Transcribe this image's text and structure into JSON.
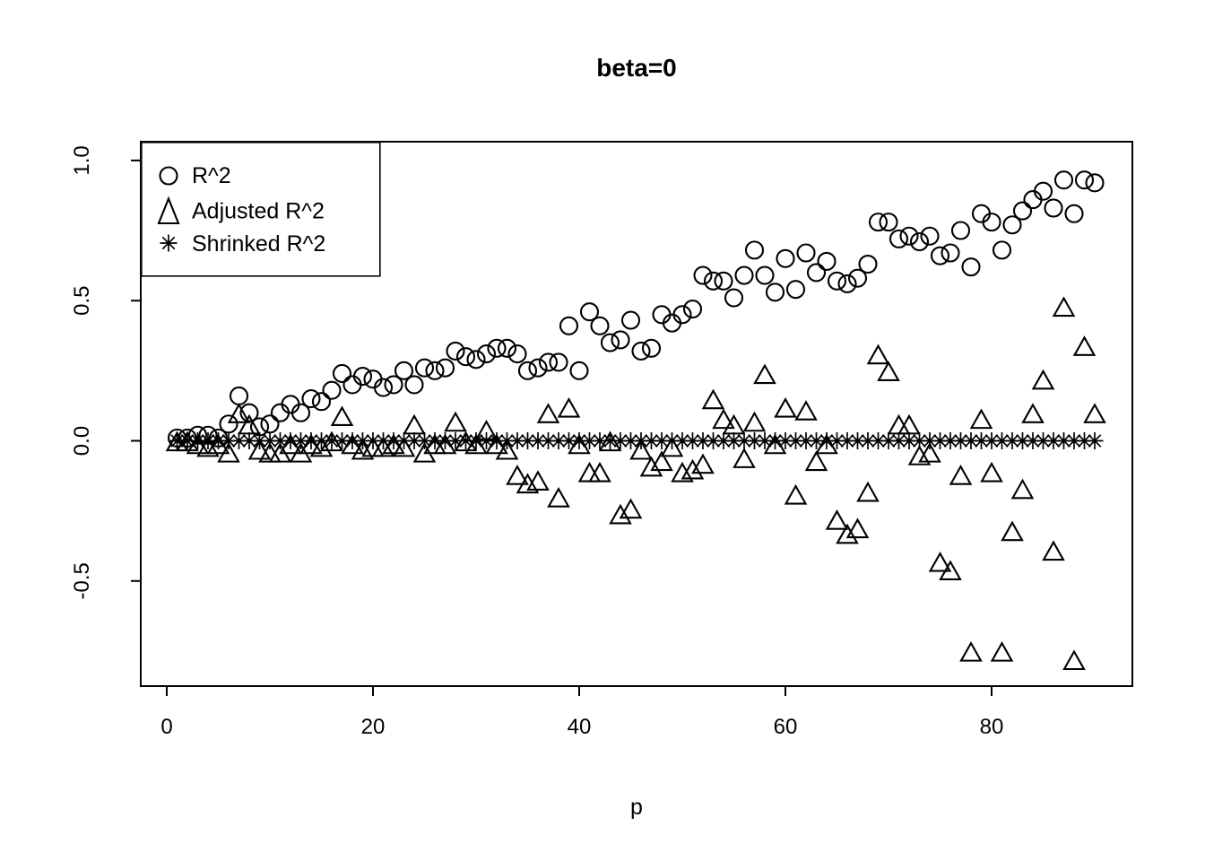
{
  "title": "beta=0",
  "chart_data": {
    "type": "scatter",
    "title": "beta=0",
    "xlabel": "p",
    "ylabel": "",
    "grid": false,
    "legend_position": "top-left",
    "xlim": [
      -2.5,
      93.6
    ],
    "ylim": [
      -0.875,
      1.067
    ],
    "x_ticks": [
      0,
      20,
      40,
      60,
      80
    ],
    "y_ticks": [
      -0.5,
      0.0,
      0.5,
      1.0
    ],
    "x_tick_labels": [
      "0",
      "20",
      "40",
      "60",
      "80"
    ],
    "y_tick_labels": [
      "-0.5",
      "0.0",
      "0.5",
      "1.0"
    ],
    "x": [
      1,
      2,
      3,
      4,
      5,
      6,
      7,
      8,
      9,
      10,
      11,
      12,
      13,
      14,
      15,
      16,
      17,
      18,
      19,
      20,
      21,
      22,
      23,
      24,
      25,
      26,
      27,
      28,
      29,
      30,
      31,
      32,
      33,
      34,
      35,
      36,
      37,
      38,
      39,
      40,
      41,
      42,
      43,
      44,
      45,
      46,
      47,
      48,
      49,
      50,
      51,
      52,
      53,
      54,
      55,
      56,
      57,
      58,
      59,
      60,
      61,
      62,
      63,
      64,
      65,
      66,
      67,
      68,
      69,
      70,
      71,
      72,
      73,
      74,
      75,
      76,
      77,
      78,
      79,
      80,
      81,
      82,
      83,
      84,
      85,
      86,
      87,
      88,
      89,
      90
    ],
    "series": [
      {
        "name": "R^2",
        "symbol": "circle",
        "values": [
          0.01,
          0.01,
          0.02,
          0.02,
          0.01,
          0.06,
          0.16,
          0.1,
          0.05,
          0.06,
          0.1,
          0.13,
          0.1,
          0.15,
          0.14,
          0.18,
          0.24,
          0.2,
          0.23,
          0.22,
          0.19,
          0.2,
          0.25,
          0.2,
          0.26,
          0.25,
          0.26,
          0.32,
          0.3,
          0.29,
          0.31,
          0.33,
          0.33,
          0.31,
          0.25,
          0.26,
          0.28,
          0.28,
          0.41,
          0.25,
          0.46,
          0.41,
          0.35,
          0.36,
          0.43,
          0.32,
          0.33,
          0.45,
          0.42,
          0.45,
          0.47,
          0.59,
          0.57,
          0.57,
          0.51,
          0.59,
          0.68,
          0.59,
          0.53,
          0.65,
          0.54,
          0.67,
          0.6,
          0.64,
          0.57,
          0.56,
          0.58,
          0.63,
          0.78,
          0.78,
          0.72,
          0.73,
          0.71,
          0.73,
          0.66,
          0.67,
          0.75,
          0.62,
          0.81,
          0.78,
          0.68,
          0.77,
          0.82,
          0.86,
          0.89,
          0.83,
          0.93,
          0.81,
          0.93,
          0.92
        ]
      },
      {
        "name": "Adjusted R^2",
        "symbol": "triangle",
        "values": [
          -0.01,
          -0.01,
          -0.02,
          -0.03,
          -0.02,
          -0.05,
          0.09,
          0.05,
          -0.04,
          -0.05,
          -0.05,
          -0.02,
          -0.05,
          -0.02,
          -0.03,
          -0.01,
          0.08,
          -0.02,
          -0.04,
          -0.03,
          -0.03,
          -0.02,
          -0.03,
          0.05,
          -0.05,
          -0.02,
          -0.02,
          0.06,
          -0.01,
          -0.02,
          0.03,
          -0.02,
          -0.04,
          -0.13,
          -0.16,
          -0.15,
          0.09,
          -0.21,
          0.11,
          -0.02,
          -0.12,
          -0.12,
          -0.01,
          -0.27,
          -0.25,
          -0.04,
          -0.1,
          -0.08,
          -0.03,
          -0.12,
          -0.11,
          -0.09,
          0.14,
          0.07,
          0.05,
          -0.07,
          0.06,
          0.23,
          -0.02,
          0.11,
          -0.2,
          0.1,
          -0.08,
          -0.02,
          -0.29,
          -0.34,
          -0.32,
          -0.19,
          0.3,
          0.24,
          0.05,
          0.05,
          -0.06,
          -0.05,
          -0.44,
          -0.47,
          -0.13,
          -0.76,
          0.07,
          -0.12,
          -0.76,
          -0.33,
          -0.18,
          0.09,
          0.21,
          -0.4,
          0.47,
          -0.79,
          0.33,
          0.09
        ]
      },
      {
        "name": "Shrinked R^2",
        "symbol": "star8",
        "values": [
          0,
          0,
          0,
          0,
          0,
          0,
          0,
          0,
          0,
          0,
          0,
          0,
          0,
          0,
          0,
          0,
          0,
          0,
          0,
          0,
          0,
          0,
          0,
          0,
          0,
          0,
          0,
          0,
          0,
          0,
          0,
          0,
          0,
          0,
          0,
          0,
          0,
          0,
          0,
          0,
          0,
          0,
          0,
          0,
          0,
          0,
          0,
          0,
          0,
          0,
          0,
          0,
          0,
          0,
          0,
          0,
          0,
          0,
          0,
          0,
          0,
          0,
          0,
          0,
          0,
          0,
          0,
          0,
          0,
          0,
          0,
          0,
          0,
          0,
          0,
          0,
          0,
          0,
          0,
          0,
          0,
          0,
          0,
          0,
          0,
          0,
          0,
          0,
          0,
          0
        ]
      }
    ]
  }
}
